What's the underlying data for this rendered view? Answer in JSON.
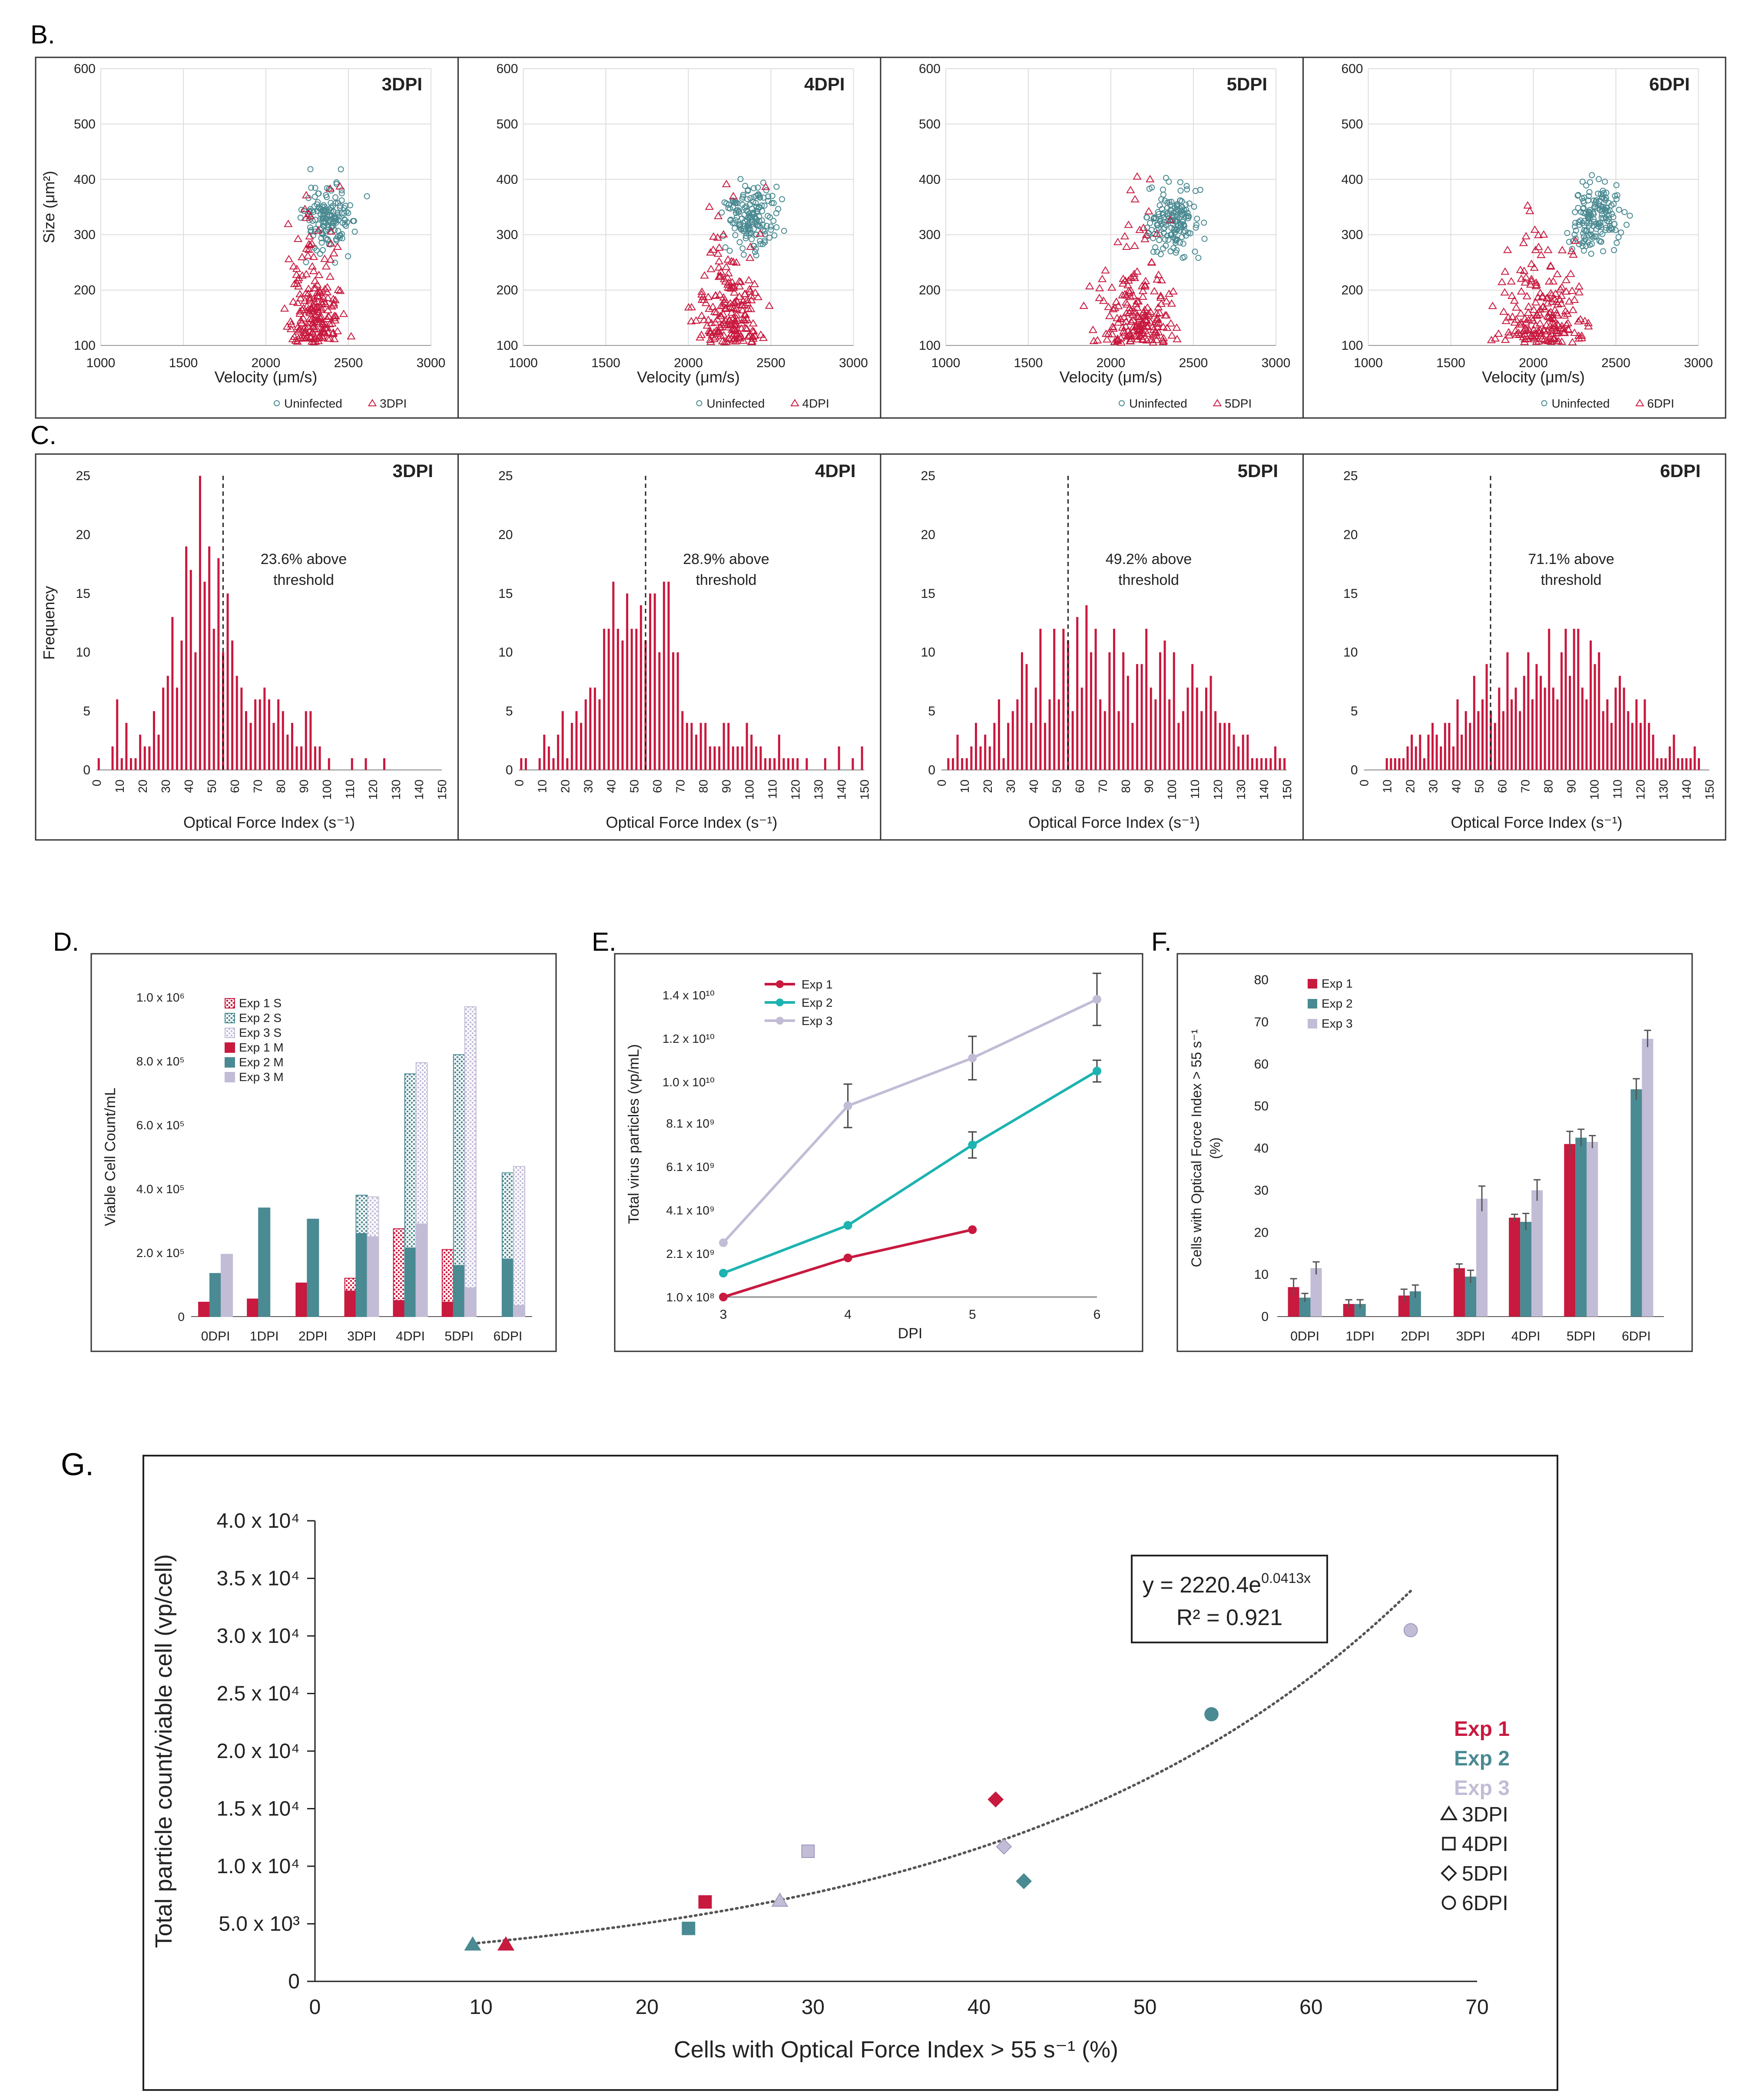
{
  "colors": {
    "exp1": "#c8193f",
    "exp2": "#4a8a92",
    "exp3": "#c2bcd6",
    "exp2_line": "#1db3b0",
    "trend": "#555555",
    "axis": "#333333",
    "grid": "#dddddd"
  },
  "panel_labels": {
    "b": "B.",
    "c": "C.",
    "d": "D.",
    "e": "E.",
    "f": "F.",
    "g": "G."
  },
  "chart_data": [
    {
      "id": "B",
      "type": "scatter",
      "title": "Size vs Velocity scatter by days post infection",
      "xlabel": "Velocity (μm/s)",
      "ylabel": "Size (μm²)",
      "xlim": [
        1000,
        3000
      ],
      "ylim": [
        100,
        600
      ],
      "xticks": [
        "1000",
        "1500",
        "2000",
        "2500",
        "3000"
      ],
      "yticks": [
        "100",
        "200",
        "300",
        "400",
        "500",
        "600"
      ],
      "panels": [
        {
          "label": "3DPI",
          "legend": [
            "Uninfected",
            "3DPI"
          ]
        },
        {
          "label": "4DPI",
          "legend": [
            "Uninfected",
            "4DPI"
          ]
        },
        {
          "label": "5DPI",
          "legend": [
            "Uninfected",
            "5DPI"
          ]
        },
        {
          "label": "6DPI",
          "legend": [
            "Uninfected",
            "6DPI"
          ]
        }
      ],
      "series_centers": {
        "uninfected": {
          "velocity": 2380,
          "size": 330
        },
        "infected": {
          "3DPI": {
            "velocity": 2300,
            "size": 220
          },
          "4DPI": {
            "velocity": 2250,
            "size": 230
          },
          "5DPI": {
            "velocity": 2150,
            "size": 200
          },
          "6DPI": {
            "velocity": 2050,
            "size": 220
          }
        }
      }
    },
    {
      "id": "C",
      "type": "bar",
      "title": "Optical Force Index histograms",
      "xlabel": "Optical Force Index (s⁻¹)",
      "ylabel": "Frequency",
      "ylim": [
        0,
        25
      ],
      "threshold": 55,
      "xticks": [
        "0",
        "10",
        "20",
        "30",
        "40",
        "50",
        "60",
        "70",
        "80",
        "90",
        "100",
        "110",
        "120",
        "130",
        "140",
        "150"
      ],
      "yticks": [
        "0",
        "5",
        "10",
        "15",
        "20",
        "25"
      ],
      "panels": [
        {
          "label": "3DPI",
          "annotation": [
            "23.6% above",
            "threshold"
          ],
          "values": [
            1,
            0,
            0,
            2,
            6,
            1,
            4,
            1,
            1,
            3,
            2,
            2,
            5,
            3,
            7,
            8,
            13,
            7,
            11,
            19,
            17,
            10,
            25,
            16,
            19,
            12,
            18,
            10,
            15,
            11,
            8,
            7,
            5,
            4,
            6,
            6,
            7,
            6,
            4,
            6,
            5,
            3,
            4,
            2,
            2,
            5,
            5,
            2,
            2,
            0,
            1,
            0,
            0,
            0,
            0,
            1,
            0,
            0,
            1,
            0,
            0,
            0,
            1,
            0,
            0,
            0,
            0,
            0,
            0,
            0,
            0,
            0,
            0,
            0,
            0
          ]
        },
        {
          "label": "4DPI",
          "annotation": [
            "28.9% above",
            "threshold"
          ],
          "values": [
            1,
            1,
            0,
            0,
            1,
            3,
            2,
            1,
            3,
            5,
            1,
            4,
            5,
            4,
            6,
            7,
            7,
            6,
            12,
            12,
            16,
            12,
            11,
            15,
            12,
            12,
            14,
            11,
            15,
            15,
            10,
            16,
            16,
            10,
            10,
            5,
            4,
            4,
            3,
            4,
            4,
            2,
            2,
            2,
            4,
            4,
            2,
            2,
            2,
            4,
            3,
            2,
            2,
            1,
            1,
            1,
            3,
            1,
            1,
            1,
            1,
            0,
            1,
            0,
            0,
            0,
            1,
            0,
            0,
            2,
            0,
            0,
            1,
            0,
            2
          ]
        },
        {
          "label": "5DPI",
          "annotation": [
            "49.2% above",
            "threshold"
          ],
          "values": [
            0,
            1,
            1,
            3,
            1,
            1,
            2,
            4,
            2,
            3,
            2,
            4,
            6,
            1,
            4,
            5,
            6,
            10,
            9,
            4,
            7,
            12,
            4,
            6,
            12,
            6,
            12,
            11,
            5,
            13,
            7,
            14,
            10,
            12,
            6,
            5,
            10,
            12,
            5,
            10,
            8,
            4,
            9,
            9,
            12,
            7,
            6,
            10,
            11,
            6,
            10,
            4,
            5,
            7,
            9,
            7,
            5,
            7,
            8,
            5,
            4,
            4,
            4,
            3,
            2,
            3,
            3,
            1,
            1,
            1,
            1,
            1,
            2,
            1,
            1
          ]
        },
        {
          "label": "6DPI",
          "annotation": [
            "71.1% above",
            "threshold"
          ],
          "values": [
            0,
            0,
            0,
            0,
            0,
            1,
            1,
            1,
            1,
            1,
            2,
            3,
            2,
            3,
            1,
            3,
            4,
            3,
            2,
            4,
            4,
            2,
            6,
            3,
            5,
            4,
            8,
            5,
            6,
            9,
            5,
            4,
            7,
            5,
            10,
            6,
            7,
            5,
            8,
            10,
            6,
            9,
            8,
            7,
            12,
            7,
            6,
            10,
            12,
            8,
            12,
            12,
            7,
            6,
            11,
            9,
            10,
            5,
            6,
            4,
            7,
            8,
            7,
            5,
            4,
            6,
            4,
            6,
            4,
            3,
            1,
            1,
            1,
            2,
            3,
            1,
            1,
            1,
            1,
            2,
            1,
            0,
            0
          ]
        }
      ]
    },
    {
      "id": "D",
      "type": "bar",
      "ylabel": "Viable Cell Count/mL",
      "ylim": [
        0,
        1000000
      ],
      "yticks": [
        "0",
        "2.0 x 10⁵",
        "4.0 x 10⁵",
        "6.0 x 10⁵",
        "8.0 x 10⁵",
        "1.0 x 10⁶"
      ],
      "categories": [
        "0DPI",
        "1DPI",
        "2DPI",
        "3DPI",
        "4DPI",
        "5DPI",
        "6DPI"
      ],
      "series": [
        {
          "name": "Exp 1 S",
          "values": [
            0,
            0,
            0,
            120000,
            275000,
            210000,
            0
          ]
        },
        {
          "name": "Exp 2 S",
          "values": [
            0,
            0,
            0,
            380000,
            760000,
            820000,
            450000
          ]
        },
        {
          "name": "Exp 3 S",
          "values": [
            0,
            0,
            0,
            375000,
            795000,
            970000,
            470000
          ]
        },
        {
          "name": "Exp 1 M",
          "values": [
            45000,
            55000,
            105000,
            80000,
            50000,
            45000,
            0
          ]
        },
        {
          "name": "Exp 2 M",
          "values": [
            135000,
            340000,
            305000,
            260000,
            215000,
            160000,
            180000
          ]
        },
        {
          "name": "Exp 3 M",
          "values": [
            195000,
            0,
            0,
            250000,
            290000,
            90000,
            35000
          ]
        }
      ]
    },
    {
      "id": "E",
      "type": "line",
      "xlabel": "DPI",
      "ylabel": "Total virus particles (vp/mL)",
      "x": [
        3,
        4,
        5,
        6
      ],
      "xticks": [
        "3",
        "4",
        "5",
        "6"
      ],
      "yticks": [
        "1.0 x 10⁸",
        "2.1 x 10⁹",
        "4.1 x 10⁹",
        "6.1 x 10⁹",
        "8.1 x 10⁹",
        "1.0 x 10¹⁰",
        "1.2 x 10¹⁰",
        "1.4 x 10¹⁰"
      ],
      "series": [
        {
          "name": "Exp 1",
          "values": [
            100000000,
            1900000000,
            3200000000,
            null
          ],
          "errors": [
            0,
            0,
            0,
            0
          ]
        },
        {
          "name": "Exp 2",
          "values": [
            1200000000,
            3400000000,
            7100000000,
            10500000000
          ],
          "errors": [
            0,
            0,
            600000000,
            500000000
          ]
        },
        {
          "name": "Exp 3",
          "values": [
            2600000000,
            8900000000,
            11100000000,
            13800000000
          ],
          "errors": [
            0,
            1000000000,
            1000000000,
            1200000000
          ]
        }
      ]
    },
    {
      "id": "F",
      "type": "bar",
      "ylabel": [
        "Cells with Optical Force Index > 55 s⁻¹",
        "(%)"
      ],
      "ylim": [
        0,
        80
      ],
      "yticks": [
        "0",
        "10",
        "20",
        "30",
        "40",
        "50",
        "60",
        "70",
        "80"
      ],
      "categories": [
        "0DPI",
        "1DPI",
        "2DPI",
        "3DPI",
        "4DPI",
        "5DPI",
        "6DPI"
      ],
      "series": [
        {
          "name": "Exp 1",
          "values": [
            7,
            3,
            5,
            11.5,
            23.5,
            41,
            null
          ],
          "errors": [
            2,
            1,
            1.5,
            1,
            0.8,
            3,
            0
          ]
        },
        {
          "name": "Exp 2",
          "values": [
            4.5,
            3,
            6,
            9.5,
            22.5,
            42.5,
            54
          ],
          "errors": [
            1,
            1,
            1.5,
            1.5,
            2,
            2,
            2.5
          ]
        },
        {
          "name": "Exp 3",
          "values": [
            11.5,
            null,
            null,
            28,
            30,
            41.5,
            66
          ],
          "errors": [
            1.5,
            0,
            0,
            3,
            2.5,
            1.5,
            2
          ]
        }
      ]
    },
    {
      "id": "G",
      "type": "scatter",
      "xlabel": "Cells with Optical Force Index > 55 s⁻¹ (%)",
      "ylabel": "Total particle count/viable cell (vp/cell)",
      "xlim": [
        0,
        70
      ],
      "ylim": [
        0,
        40000
      ],
      "xticks": [
        "0",
        "10",
        "20",
        "30",
        "40",
        "50",
        "60",
        "70"
      ],
      "yticks": [
        "0",
        "5.0 x 10³",
        "1.0 x 10⁴",
        "1.5 x 10⁴",
        "2.0 x 10⁴",
        "2.5 x 10⁴",
        "3.0 x 10⁴",
        "3.5 x 10⁴",
        "4.0 x 10⁴"
      ],
      "points": [
        {
          "exp": "Exp 1",
          "dpi": "3DPI",
          "x": 11.5,
          "y": 3200
        },
        {
          "exp": "Exp 1",
          "dpi": "4DPI",
          "x": 23.5,
          "y": 6900
        },
        {
          "exp": "Exp 1",
          "dpi": "5DPI",
          "x": 41,
          "y": 15800
        },
        {
          "exp": "Exp 2",
          "dpi": "3DPI",
          "x": 9.5,
          "y": 3200
        },
        {
          "exp": "Exp 2",
          "dpi": "4DPI",
          "x": 22.5,
          "y": 4600
        },
        {
          "exp": "Exp 2",
          "dpi": "5DPI",
          "x": 42.7,
          "y": 8700
        },
        {
          "exp": "Exp 2",
          "dpi": "6DPI",
          "x": 54,
          "y": 23200
        },
        {
          "exp": "Exp 3",
          "dpi": "3DPI",
          "x": 28,
          "y": 7000
        },
        {
          "exp": "Exp 3",
          "dpi": "4DPI",
          "x": 29.7,
          "y": 11300
        },
        {
          "exp": "Exp 3",
          "dpi": "5DPI",
          "x": 41.5,
          "y": 11700
        },
        {
          "exp": "Exp 3",
          "dpi": "6DPI",
          "x": 66,
          "y": 30500
        }
      ],
      "trendline": {
        "a": 2220.4,
        "b": 0.0413,
        "x_range": [
          9.5,
          66
        ]
      },
      "equation": {
        "prefix": "y = 2220.4e",
        "exponent": "0.0413x",
        "r2": "R² = 0.921"
      },
      "legend_exps": [
        "Exp 1",
        "Exp 2",
        "Exp 3"
      ],
      "legend_dpis": [
        {
          "symbol": "triangle",
          "label": "3DPI"
        },
        {
          "symbol": "square",
          "label": "4DPI"
        },
        {
          "symbol": "diamond",
          "label": "5DPI"
        },
        {
          "symbol": "circle",
          "label": "6DPI"
        }
      ]
    }
  ]
}
